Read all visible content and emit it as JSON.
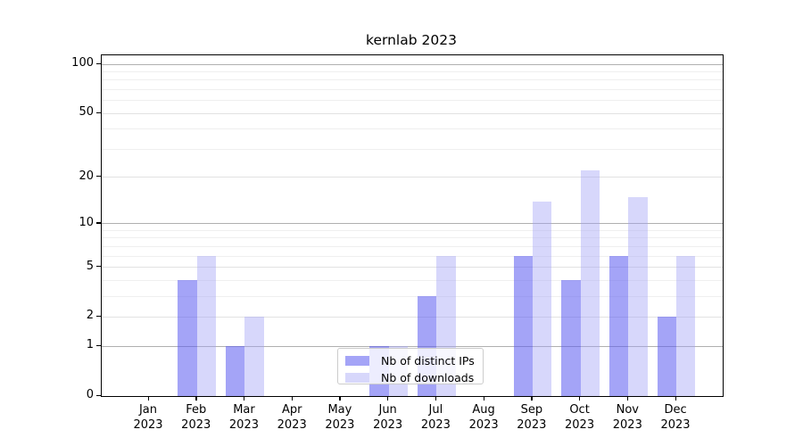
{
  "chart_data": {
    "type": "bar",
    "title": "kernlab 2023",
    "scale": "log1p",
    "categories": [
      "Jan",
      "Feb",
      "Mar",
      "Apr",
      "May",
      "Jun",
      "Jul",
      "Aug",
      "Sep",
      "Oct",
      "Nov",
      "Dec"
    ],
    "category_year": "2023",
    "series": [
      {
        "name": "Nb of distinct IPs",
        "color": "rgba(90,90,240,0.55)",
        "values": [
          0,
          4,
          1,
          0,
          0,
          1,
          3,
          0,
          6,
          4,
          6,
          2
        ]
      },
      {
        "name": "Nb of downloads",
        "color": "rgba(160,160,245,0.42)",
        "values": [
          0,
          6,
          2,
          0,
          0,
          1,
          6,
          0,
          14,
          22,
          15,
          6
        ]
      }
    ],
    "y_ticks": [
      0,
      1,
      2,
      5,
      10,
      20,
      50,
      100
    ],
    "y_minor_gridlines_labeled": [
      2,
      5,
      20,
      50
    ],
    "y_minor_gridlines": [
      3,
      4,
      6,
      7,
      8,
      9,
      30,
      40,
      60,
      70,
      80,
      90
    ],
    "y_major_gridlines": [
      1,
      10,
      100
    ],
    "ylim": [
      0,
      113
    ],
    "grid": true,
    "legend_position": "lower-center-inside",
    "colors": {
      "major_grid": "#b0b0b0",
      "minor_grid_labeled": "#e2e2e2",
      "minor_grid": "#efefef",
      "axis_frame": "#000000",
      "background": "#ffffff"
    }
  }
}
